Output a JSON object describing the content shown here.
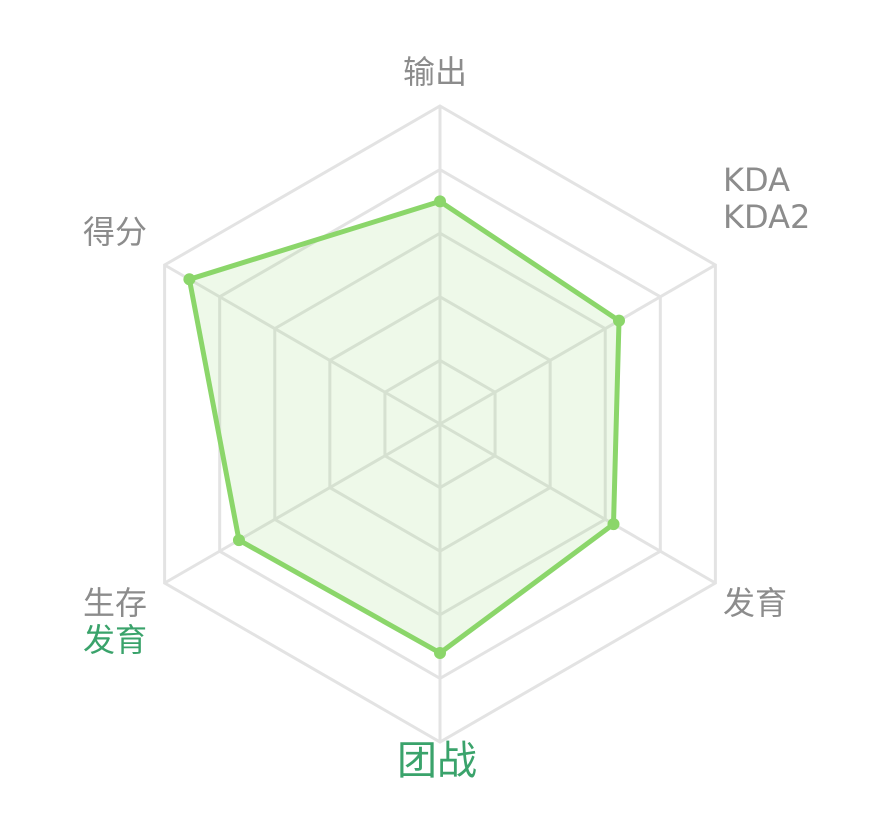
{
  "chart_data": {
    "type": "radar",
    "axes": [
      "输出",
      "KDA",
      "发育",
      "团战",
      "生存",
      "得分"
    ],
    "series": [
      {
        "values": [
          0.7,
          0.65,
          0.63,
          0.72,
          0.73,
          0.91
        ]
      }
    ],
    "range": [
      0,
      1
    ],
    "rings": 5,
    "grid": true,
    "colors": {
      "series": "#8bd66a",
      "fill": "rgba(139,214,106,0.15)",
      "grid": "#e3e3e3",
      "label": "#8c8c8c",
      "highlight": "#3aa36b"
    }
  },
  "labels": {
    "top": {
      "text": "输出"
    },
    "top_right": {
      "line1": "KDA",
      "line2": "KDA2"
    },
    "bottom_right": {
      "text": "发育"
    },
    "bottom": {
      "text": "团战"
    },
    "bottom_left": {
      "line1": "生存",
      "line2": "发育"
    },
    "top_left": {
      "text": "得分"
    }
  }
}
